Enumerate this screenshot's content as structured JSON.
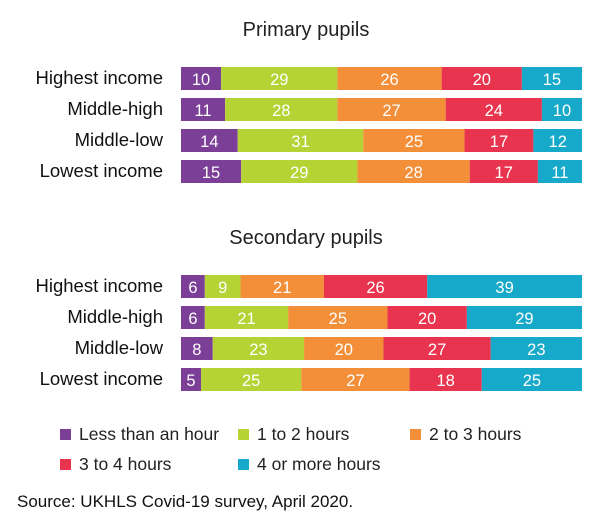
{
  "chart_data": [
    {
      "type": "bar",
      "stacked": true,
      "orientation": "horizontal",
      "title": "Primary pupils",
      "categories": [
        "Highest income",
        "Middle-high",
        "Middle-low",
        "Lowest income"
      ],
      "series": [
        {
          "name": "Less than an hour",
          "color": "#7b3f98",
          "values": [
            10,
            11,
            14,
            15
          ]
        },
        {
          "name": "1 to 2 hours",
          "color": "#b5d334",
          "values": [
            29,
            28,
            31,
            29
          ]
        },
        {
          "name": "2 to 3 hours",
          "color": "#f28f38",
          "values": [
            26,
            27,
            25,
            28
          ]
        },
        {
          "name": "3 to 4 hours",
          "color": "#e8344e",
          "values": [
            20,
            24,
            17,
            17
          ]
        },
        {
          "name": "4 or more hours",
          "color": "#17a9c9",
          "values": [
            15,
            10,
            12,
            11
          ]
        }
      ]
    },
    {
      "type": "bar",
      "stacked": true,
      "orientation": "horizontal",
      "title": "Secondary pupils",
      "categories": [
        "Highest income",
        "Middle-high",
        "Middle-low",
        "Lowest income"
      ],
      "series": [
        {
          "name": "Less than an hour",
          "color": "#7b3f98",
          "values": [
            6,
            6,
            8,
            5
          ]
        },
        {
          "name": "1 to 2 hours",
          "color": "#b5d334",
          "values": [
            9,
            21,
            23,
            25
          ]
        },
        {
          "name": "2 to 3 hours",
          "color": "#f28f38",
          "values": [
            21,
            25,
            20,
            27
          ]
        },
        {
          "name": "3 to 4 hours",
          "color": "#e8344e",
          "values": [
            26,
            20,
            27,
            18
          ]
        },
        {
          "name": "4 or more hours",
          "color": "#17a9c9",
          "values": [
            39,
            29,
            23,
            25
          ]
        }
      ]
    }
  ],
  "legend": {
    "items": [
      {
        "label": "Less than an hour",
        "color": "#7b3f98"
      },
      {
        "label": "1 to 2 hours",
        "color": "#b5d334"
      },
      {
        "label": "2 to 3 hours",
        "color": "#f28f38"
      },
      {
        "label": "3 to 4 hours",
        "color": "#e8344e"
      },
      {
        "label": "4 or more hours",
        "color": "#17a9c9"
      }
    ]
  },
  "source": "Source: UKHLS Covid-19 survey, April 2020."
}
